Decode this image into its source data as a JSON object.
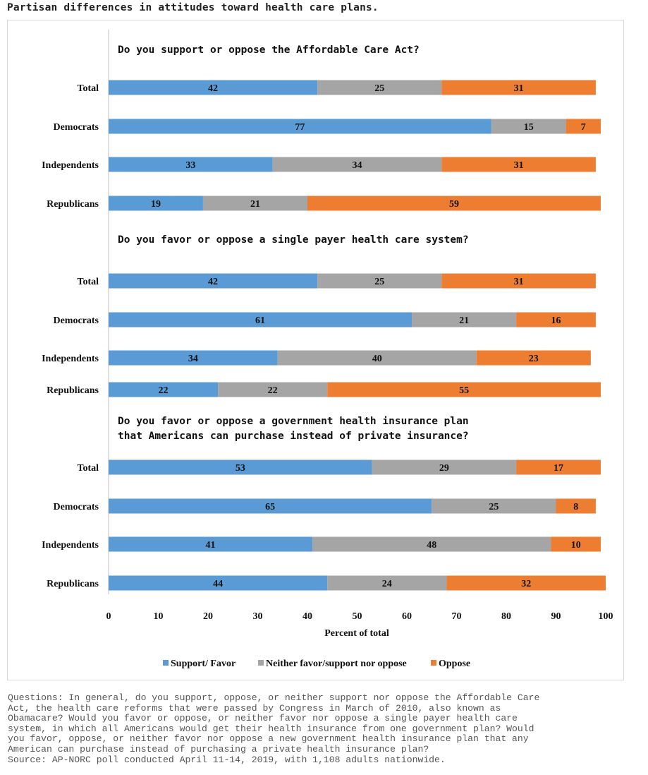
{
  "title": "Partisan differences in attitudes toward health care plans.",
  "chart_data": {
    "type": "bar",
    "stacked": true,
    "orientation": "horizontal",
    "xlabel": "Percent of total",
    "xlim": [
      0,
      100
    ],
    "xticks": [
      "0",
      "10",
      "20",
      "30",
      "40",
      "50",
      "60",
      "70",
      "80",
      "90",
      "100"
    ],
    "legend_position": "bottom",
    "colors": {
      "Support/ Favor": "#5b9bd5",
      "Neither favor/support nor oppose": "#a5a5a5",
      "Oppose": "#ed7d31"
    },
    "series_names": [
      "Support/ Favor",
      "Neither favor/support nor oppose",
      "Oppose"
    ],
    "panels": [
      {
        "question_lines": [
          "Do you support or oppose the Affordable Care Act?"
        ],
        "categories": [
          "Total",
          "Democrats",
          "Independents",
          "Republicans"
        ],
        "series": [
          {
            "name": "Support/ Favor",
            "values": [
              42,
              77,
              33,
              19
            ]
          },
          {
            "name": "Neither favor/support nor oppose",
            "values": [
              25,
              15,
              34,
              21
            ]
          },
          {
            "name": "Oppose",
            "values": [
              31,
              7,
              31,
              59
            ]
          }
        ]
      },
      {
        "question_lines": [
          "Do you favor or oppose a single payer health care system?"
        ],
        "categories": [
          "Total",
          "Democrats",
          "Independents",
          "Republicans"
        ],
        "series": [
          {
            "name": "Support/ Favor",
            "values": [
              42,
              61,
              34,
              22
            ]
          },
          {
            "name": "Neither favor/support nor oppose",
            "values": [
              25,
              21,
              40,
              22
            ]
          },
          {
            "name": "Oppose",
            "values": [
              31,
              16,
              23,
              55
            ]
          }
        ]
      },
      {
        "question_lines": [
          "Do you favor or oppose a government health insurance plan",
          "that Americans can purchase instead of private insurance?"
        ],
        "categories": [
          "Total",
          "Democrats",
          "Independents",
          "Republicans"
        ],
        "series": [
          {
            "name": "Support/ Favor",
            "values": [
              53,
              65,
              41,
              44
            ]
          },
          {
            "name": "Neither favor/support nor oppose",
            "values": [
              29,
              25,
              48,
              24
            ]
          },
          {
            "name": "Oppose",
            "values": [
              17,
              8,
              10,
              32
            ]
          }
        ]
      }
    ]
  },
  "footer_lines": [
    "Questions: In general, do you support, oppose, or neither support nor oppose the Affordable Care",
    "Act, the health care reforms that were passed by Congress in March of 2010, also known as",
    "Obamacare? Would you favor or oppose, or neither favor nor oppose a single payer health care",
    "system, in which all Americans would get their health insurance from one government plan? Would",
    "you favor, oppose, or neither favor nor oppose a new government health insurance plan that any",
    "American can purchase instead of purchasing a private health insurance plan?",
    "Source: AP-NORC poll conducted April 11-14, 2019, with 1,108 adults nationwide."
  ]
}
